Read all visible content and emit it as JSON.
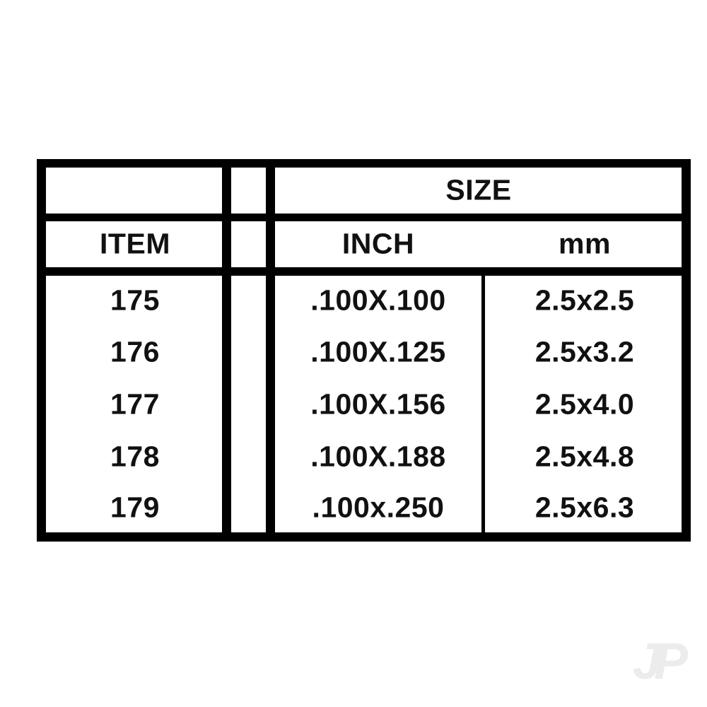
{
  "table": {
    "header_group": "SIZE",
    "columns": [
      "ITEM",
      "INCH",
      "mm"
    ],
    "rows": [
      {
        "item": "175",
        "inch": ".100X.100",
        "mm": "2.5x2.5"
      },
      {
        "item": "176",
        "inch": ".100X.125",
        "mm": "2.5x3.2"
      },
      {
        "item": "177",
        "inch": ".100X.156",
        "mm": "2.5x4.0"
      },
      {
        "item": "178",
        "inch": ".100X.188",
        "mm": "2.5x4.8"
      },
      {
        "item": "179",
        "inch": ".100x.250",
        "mm": "2.5x6.3"
      }
    ]
  },
  "watermark": "JP"
}
